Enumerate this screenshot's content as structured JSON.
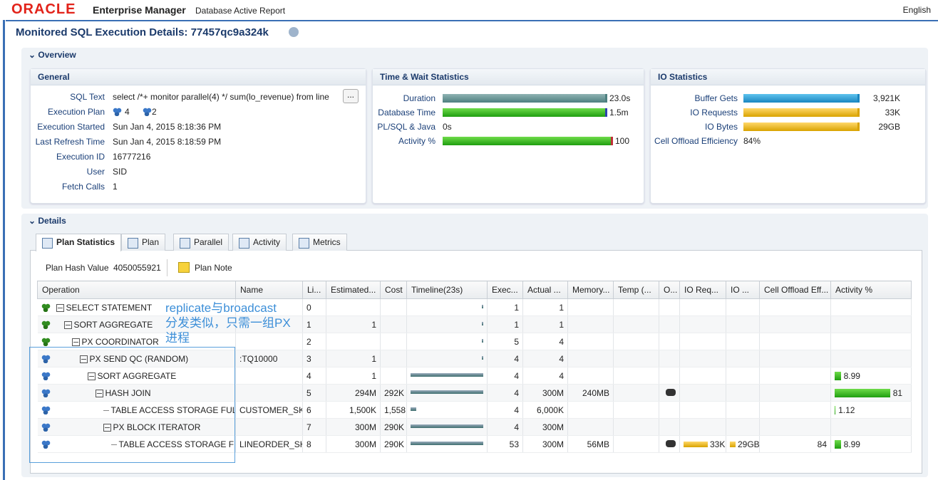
{
  "header": {
    "logo": "ORACLE",
    "product": "Enterprise Manager",
    "subtitle": "Database Active Report",
    "language": "English"
  },
  "page_title": "Monitored SQL Execution Details: 77457qc9a324k",
  "overview": {
    "title": "Overview",
    "general": {
      "title": "General",
      "fields": [
        {
          "label": "SQL Text",
          "value": "select /*+ monitor parallel(4) */ sum(lo_revenue) from line",
          "button": "..."
        },
        {
          "label": "Execution Plan",
          "values": [
            "4",
            "2"
          ]
        },
        {
          "label": "Execution Started",
          "value": "Sun Jan 4, 2015 8:18:36 PM"
        },
        {
          "label": "Last Refresh Time",
          "value": "Sun Jan 4, 2015 8:18:59 PM"
        },
        {
          "label": "Execution ID",
          "value": "16777216"
        },
        {
          "label": "User",
          "value": "SID"
        },
        {
          "label": "Fetch Calls",
          "value": "1"
        }
      ]
    },
    "time_wait": {
      "title": "Time & Wait Statistics",
      "rows": [
        {
          "label": "Duration",
          "value": "23.0s"
        },
        {
          "label": "Database Time",
          "value": "1.5m"
        },
        {
          "label": "PL/SQL & Java",
          "value": "0s"
        },
        {
          "label": "Activity %",
          "value": "100"
        }
      ]
    },
    "io": {
      "title": "IO Statistics",
      "rows": [
        {
          "label": "Buffer Gets",
          "value": "3,921K"
        },
        {
          "label": "IO Requests",
          "value": "33K"
        },
        {
          "label": "IO Bytes",
          "value": "29GB"
        },
        {
          "label": "Cell Offload Efficiency",
          "value": "84%"
        }
      ]
    }
  },
  "details": {
    "title": "Details",
    "tabs": [
      "Plan Statistics",
      "Plan",
      "Parallel",
      "Activity",
      "Metrics"
    ],
    "plan_hash_label": "Plan Hash Value",
    "plan_hash": "4050055921",
    "plan_note": "Plan Note",
    "table": {
      "columns": [
        "Operation",
        "Name",
        "Li...",
        "Estimated...",
        "Cost",
        "Timeline(23s)",
        "Exec...",
        "Actual ...",
        "Memory...",
        "Temp (...",
        "O...",
        "IO Req...",
        "IO ...",
        "Cell Offload Eff...",
        "Activity %"
      ],
      "rows": [
        {
          "operation": "SELECT STATEMENT",
          "line": 0,
          "exec": "1",
          "actual": "1"
        },
        {
          "operation": "SORT AGGREGATE",
          "line": 1,
          "estimated": "1",
          "exec": "1",
          "actual": "1"
        },
        {
          "operation": "PX COORDINATOR",
          "line": 2,
          "exec": "5",
          "actual": "4"
        },
        {
          "operation": "PX SEND QC (RANDOM)",
          "name": ":TQ10000",
          "line": 3,
          "estimated": "1",
          "exec": "4",
          "actual": "4"
        },
        {
          "operation": "SORT AGGREGATE",
          "line": 4,
          "estimated": "1",
          "exec": "4",
          "actual": "4",
          "activity": 8.99
        },
        {
          "operation": "HASH JOIN",
          "line": 5,
          "estimated": "294M",
          "cost": "292K",
          "exec": "4",
          "actual": "300M",
          "memory": "240MB",
          "activity": 81
        },
        {
          "operation": "TABLE ACCESS STORAGE FULL",
          "name": "CUSTOMER_SKE",
          "line": 6,
          "estimated": "1,500K",
          "cost": "1,558",
          "exec": "4",
          "actual": "6,000K",
          "activity": 1.12
        },
        {
          "operation": "PX BLOCK ITERATOR",
          "line": 7,
          "estimated": "300M",
          "cost": "290K",
          "exec": "4",
          "actual": "300M"
        },
        {
          "operation": "TABLE ACCESS STORAGE FULL",
          "name": "LINEORDER_SKI",
          "line": 8,
          "estimated": "300M",
          "cost": "290K",
          "exec": "53",
          "actual": "300M",
          "memory": "56MB",
          "io_requests": "33K",
          "io_bytes": "29GB",
          "cell_offload": 84,
          "activity": 8.99
        }
      ]
    }
  },
  "annotation": {
    "lines": [
      "replicate与broadcast",
      "分发类似，只需一组PX",
      "进程"
    ]
  }
}
